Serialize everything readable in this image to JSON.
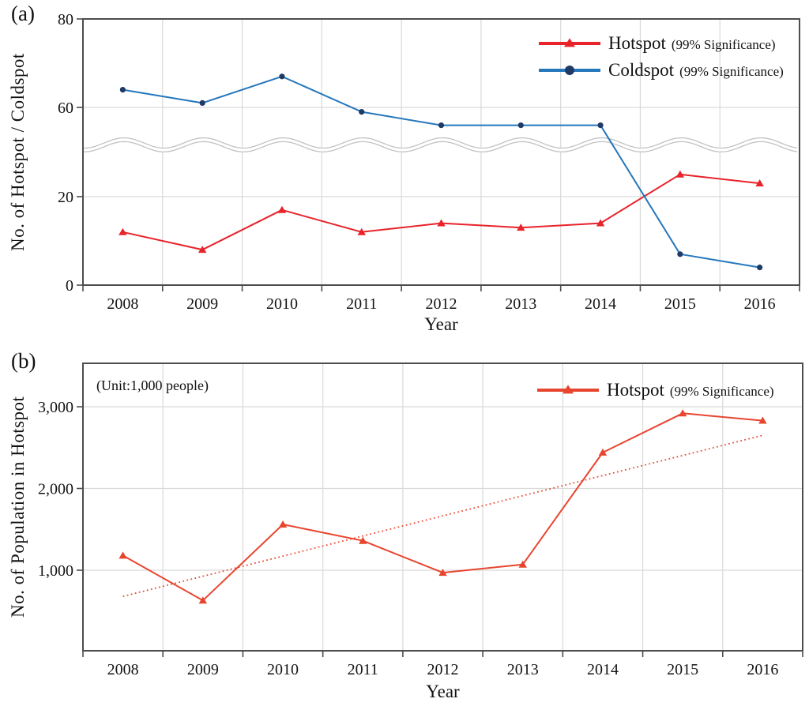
{
  "panels": {
    "a": {
      "tag": "(a)",
      "y_title": "No. of Hotspot / Coldspot",
      "x_title": "Year"
    },
    "b": {
      "tag": "(b)",
      "y_title": "No. of  Population in Hotspot",
      "x_title": "Year",
      "unit_note": "(Unit:1,000 people)"
    }
  },
  "legend_a": {
    "items": [
      {
        "main": "Hotspot",
        "sub": "(99% Significance)",
        "color": "#e8232a",
        "marker": "triangle"
      },
      {
        "main": "Coldspot",
        "sub": "(99% Significance)",
        "color": "#2577bc",
        "marker": "circle",
        "marker_color": "#1f3a64"
      }
    ]
  },
  "legend_b": {
    "items": [
      {
        "main": "Hotspot",
        "sub": "(99% Significance)",
        "color": "#e8452f",
        "marker": "triangle"
      }
    ]
  },
  "colors": {
    "hotspot_red_a": "#e8232a",
    "hotspot_red_b": "#e8452f",
    "coldspot_blue_line": "#2577bc",
    "coldspot_marker_navy": "#1f3a64",
    "gridline": "#d9d9d9",
    "plot_border": "#4d4d4d",
    "axis_break_wave": "#c2c2c2",
    "text": "#141414"
  },
  "chart_data": [
    {
      "id": "a",
      "type": "line",
      "title": "",
      "x": [
        "2008",
        "2009",
        "2010",
        "2011",
        "2012",
        "2013",
        "2014",
        "2015",
        "2016"
      ],
      "xlabel": "Year",
      "ylabel": "No. of Hotspot / Coldspot",
      "yticks": [
        0,
        20,
        60,
        80
      ],
      "ytick_labels": [
        "0",
        "20",
        "60",
        "80"
      ],
      "ylim": [
        0,
        80
      ],
      "grid": true,
      "legend_position": "top-right",
      "axis_break": {
        "between": [
          20,
          60
        ],
        "compression": 2,
        "band_center_value": 43,
        "style": "double gray wavy line across plot"
      },
      "series": [
        {
          "name": "Hotspot (99% Significance)",
          "color": "#e8232a",
          "marker": "triangle",
          "values": [
            12,
            8,
            17,
            12,
            14,
            13,
            14,
            30,
            26
          ]
        },
        {
          "name": "Coldspot (99% Significance)",
          "color": "#2577bc",
          "marker": "circle",
          "marker_color": "#1f3a64",
          "values": [
            64,
            61,
            67,
            58,
            52,
            52,
            52,
            7,
            4
          ]
        }
      ]
    },
    {
      "id": "b",
      "type": "line",
      "title": "",
      "annotation": "(Unit:1,000 people)",
      "x": [
        "2008",
        "2009",
        "2010",
        "2011",
        "2012",
        "2013",
        "2014",
        "2015",
        "2016"
      ],
      "xlabel": "Year",
      "ylabel": "No. of  Population in Hotspot",
      "yticks": [
        1000,
        2000,
        3000
      ],
      "ytick_labels": [
        "1,000",
        "2,000",
        "3,000"
      ],
      "ylim": [
        0,
        3500
      ],
      "grid": true,
      "legend_position": "top-right",
      "series": [
        {
          "name": "Hotspot (99% Significance)",
          "color": "#e8452f",
          "marker": "triangle",
          "values": [
            1180,
            630,
            1560,
            1360,
            970,
            1070,
            2440,
            2920,
            2830
          ]
        }
      ],
      "trendline": {
        "style": "dotted",
        "color": "#e8452f",
        "start_year": "2008",
        "end_year": "2016",
        "start_value": 680,
        "end_value": 2650
      }
    }
  ]
}
